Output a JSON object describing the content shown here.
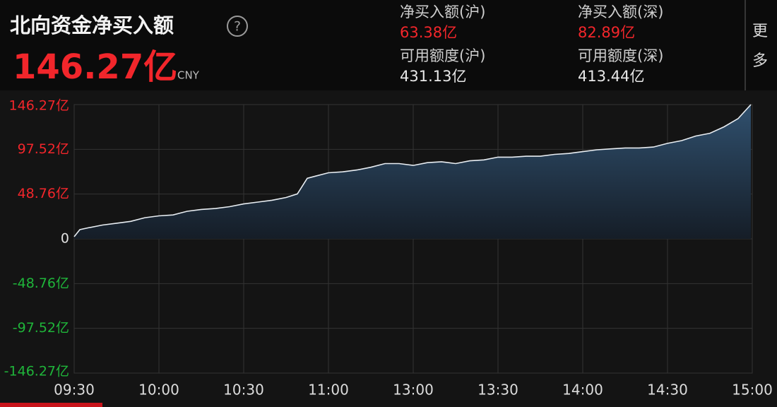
{
  "header": {
    "title": "北向资金净买入额",
    "total": "146.27亿",
    "currency": "CNY",
    "stats": [
      {
        "label": "净买入额(沪)",
        "value": "63.38亿"
      },
      {
        "label": "净买入额(深)",
        "value": "82.89亿"
      },
      {
        "label": "可用额度(沪)",
        "value": "431.13亿"
      },
      {
        "label": "可用额度(深)",
        "value": "413.44亿"
      }
    ],
    "more": [
      "更",
      "多"
    ]
  },
  "chart_data": {
    "type": "area",
    "color": "#e8edf2",
    "up_color": "#f2262b",
    "down_color": "#1fb53a",
    "x": [
      0,
      2,
      5,
      10,
      15,
      20,
      25,
      30,
      35,
      40,
      45,
      50,
      55,
      60,
      65,
      70,
      75,
      79,
      82.5,
      85,
      90,
      95,
      100,
      105,
      110,
      115,
      120,
      125,
      130,
      135,
      140,
      145,
      150,
      155,
      160,
      165,
      170,
      175,
      180,
      185,
      190,
      195,
      200,
      205,
      210,
      215,
      220,
      225,
      230,
      235,
      239.5
    ],
    "values": [
      2.3,
      10,
      12,
      15,
      17,
      19,
      23,
      25,
      26,
      30,
      32,
      33,
      35,
      38,
      40,
      42,
      45,
      49,
      66,
      68,
      72,
      73,
      75,
      78,
      82,
      82,
      80,
      83,
      84,
      82,
      85,
      86,
      89,
      89,
      90,
      90,
      92,
      93,
      95,
      97,
      98,
      99,
      99,
      100,
      104,
      107,
      112,
      115,
      122,
      131,
      146.27
    ],
    "xlim": [
      0,
      240
    ],
    "xticks": [
      {
        "value": 0,
        "label": "09:30"
      },
      {
        "value": 30,
        "label": "10:00"
      },
      {
        "value": 60,
        "label": "10:30"
      },
      {
        "value": 90,
        "label": "11:00"
      },
      {
        "value": 120,
        "label": "13:00"
      },
      {
        "value": 150,
        "label": "13:30"
      },
      {
        "value": 180,
        "label": "14:00"
      },
      {
        "value": 210,
        "label": "14:30"
      },
      {
        "value": 240,
        "label": "15:00"
      }
    ],
    "ylim": [
      -146.27,
      146.27
    ],
    "yticks": [
      {
        "value": 146.27,
        "label": "146.27亿"
      },
      {
        "value": 97.52,
        "label": "97.52亿"
      },
      {
        "value": 48.76,
        "label": "48.76亿"
      },
      0,
      {
        "value": -48.76,
        "label": "-48.76亿"
      },
      {
        "value": -97.52,
        "label": "-97.52亿"
      },
      {
        "value": -146.27,
        "label": "-146.27亿"
      }
    ],
    "grid": true
  }
}
